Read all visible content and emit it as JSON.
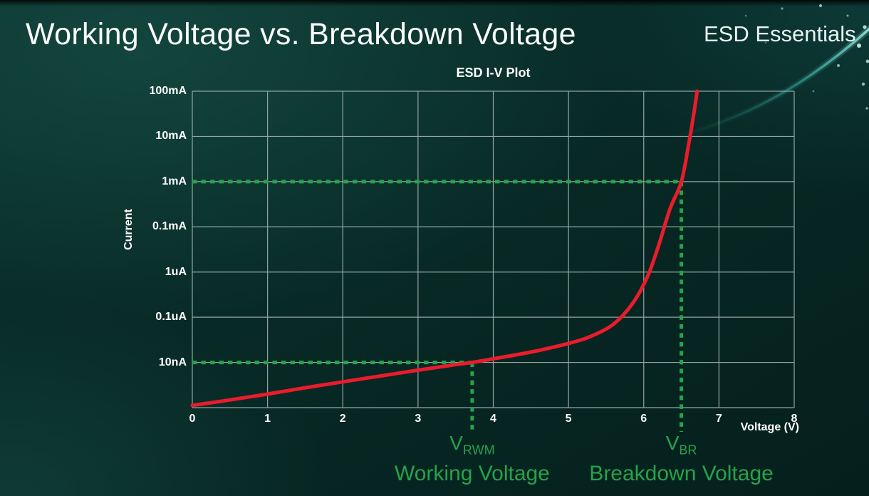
{
  "page": {
    "title": "Working Voltage vs. Breakdown Voltage",
    "brand": "ESD Essentials"
  },
  "chart_data": {
    "type": "line",
    "title": "ESD I-V Plot",
    "xlabel": "Voltage (V)",
    "ylabel": "Current",
    "xlim": [
      0,
      8
    ],
    "x_ticks": [
      "0",
      "1",
      "2",
      "3",
      "4",
      "5",
      "6",
      "7",
      "8"
    ],
    "y_tick_labels": [
      "100mA",
      "10mA",
      "1mA",
      "0.1mA",
      "1uA",
      "0.1uA",
      "10nA"
    ],
    "y_scale": "log",
    "y_decades_total": 7,
    "grid": true,
    "series": [
      {
        "name": "ESD I-V curve",
        "color": "#ea1c2c",
        "y_unit": "decades above bottom gridline (bottom=0, 100mA line=7)",
        "points": [
          [
            0,
            0.05
          ],
          [
            0.5,
            0.17
          ],
          [
            1,
            0.3
          ],
          [
            1.5,
            0.44
          ],
          [
            2,
            0.57
          ],
          [
            2.5,
            0.7
          ],
          [
            3,
            0.83
          ],
          [
            3.5,
            0.95
          ],
          [
            3.72,
            1.0
          ],
          [
            4,
            1.08
          ],
          [
            4.5,
            1.23
          ],
          [
            5,
            1.42
          ],
          [
            5.3,
            1.58
          ],
          [
            5.6,
            1.85
          ],
          [
            5.85,
            2.3
          ],
          [
            6.05,
            2.9
          ],
          [
            6.2,
            3.6
          ],
          [
            6.35,
            4.4
          ],
          [
            6.5,
            5.0
          ],
          [
            6.6,
            5.85
          ],
          [
            6.67,
            6.55
          ],
          [
            6.71,
            7.0
          ]
        ]
      }
    ],
    "annotations": [
      {
        "id": "vrwm",
        "label": "V",
        "sub": "RWM",
        "caption": "Working Voltage",
        "x_volts": 3.72,
        "y_decade": 1,
        "y_level_label": "10nA",
        "color": "#27a24b"
      },
      {
        "id": "vbr",
        "label": "V",
        "sub": "BR",
        "caption": "Breakdown Voltage",
        "x_volts": 6.5,
        "y_decade": 5,
        "y_level_label": "1mA",
        "color": "#27a24b"
      }
    ],
    "colors": {
      "grid": "#93a7a2",
      "curve": "#ea1c2c",
      "annotation": "#27a24b",
      "text": "#ffffff",
      "background": "#072a26"
    },
    "legend": "none"
  }
}
